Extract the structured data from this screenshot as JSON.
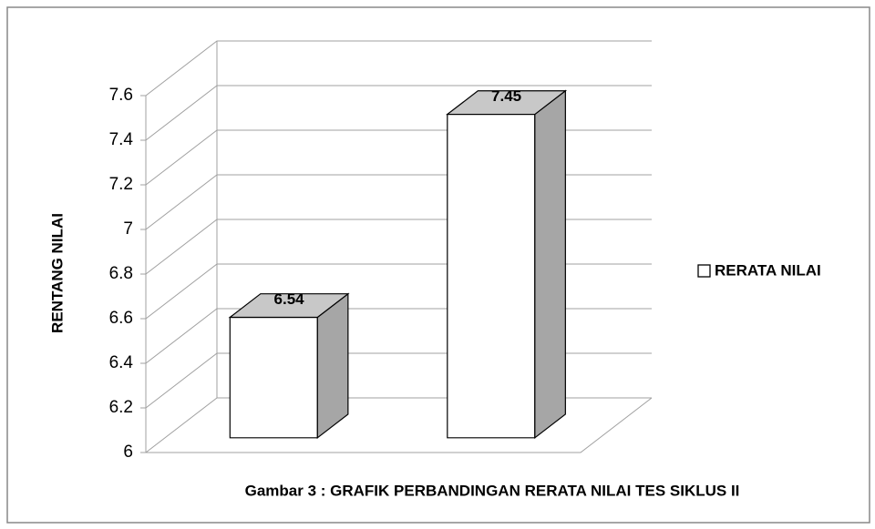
{
  "chart_data": {
    "type": "bar3d",
    "title": "Gambar 3 : GRAFIK PERBANDINGAN RERATA NILAI TES SIKLUS II",
    "y_label": "RENTANG NILAI",
    "categories": [
      null,
      null
    ],
    "series": [
      {
        "name": "RERATA NILAI",
        "color": "#ffffff",
        "side_color": "#a6a6a6",
        "top_color": "#c8c8c8",
        "values": [
          6.54,
          7.45
        ]
      }
    ],
    "ylim": [
      6,
      7.6
    ],
    "yticks": [
      6,
      6.2,
      6.4,
      6.6,
      6.8,
      7,
      7.2,
      7.4,
      7.6
    ],
    "grid": true,
    "legend": "right"
  }
}
